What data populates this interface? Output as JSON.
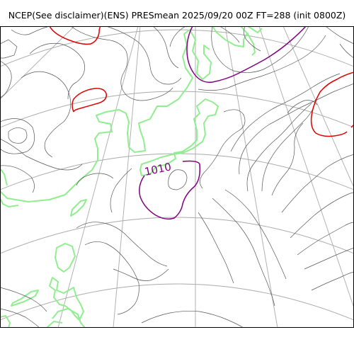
{
  "title": "NCEP(See disclaimer)(ENS) PRESmean 2025/09/20 00Z FT=288 (init 0800Z)",
  "contour_label": "1010",
  "colors": {
    "background": "#ffffff",
    "frame": "#000000",
    "graticule": "#aaaaaa",
    "isobar": "#555555",
    "isobar_1010": "#800080",
    "isobar_high": "#e00000",
    "coastline": "#90ee90"
  }
}
